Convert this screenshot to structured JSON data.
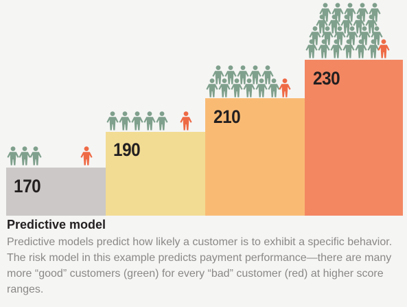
{
  "colors": {
    "background": "#f5f5f4",
    "good_customer": "#7fa08c",
    "bad_customer": "#ee6a45"
  },
  "steps": [
    {
      "score": "170",
      "color": "#cbc8c7",
      "good_customers": 3,
      "bad_customers": 1
    },
    {
      "score": "190",
      "color": "#f2dc94",
      "good_customers": 5,
      "bad_customers": 1
    },
    {
      "score": "210",
      "color": "#f9bb74",
      "good_customers": 11,
      "bad_customers": 1
    },
    {
      "score": "230",
      "color": "#f38762",
      "good_customers": 22,
      "bad_customers": 1
    }
  ],
  "icons": {
    "good": "person-icon-green",
    "bad": "person-icon-red"
  },
  "caption": {
    "title": "Predictive model",
    "body": "Predictive models predict how likely a customer is to exhibit a specific behavior. The risk model in this example predicts payment performance—there are many more “good” customers (green) for every “bad” customer (red) at higher score ranges."
  }
}
